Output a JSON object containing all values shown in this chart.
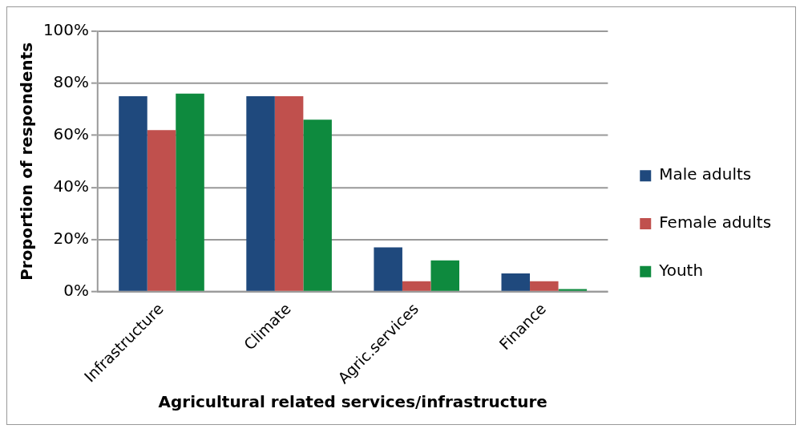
{
  "chart_data": {
    "type": "bar",
    "xlabel": "Agricultural related services/infrastructure",
    "ylabel": "Proportion of respondents",
    "categories": [
      "Infrastructure",
      "Climate",
      "Agric.services",
      "Finance"
    ],
    "series": [
      {
        "name": "Male adults",
        "color": "#1f497d",
        "values": [
          75,
          75,
          17,
          7
        ]
      },
      {
        "name": "Female adults",
        "color": "#c0504d",
        "values": [
          62,
          75,
          4,
          4
        ]
      },
      {
        "name": "Youth",
        "color": "#0e8a3e",
        "values": [
          76,
          66,
          12,
          1
        ]
      }
    ],
    "ylim": [
      0,
      100
    ],
    "yticks": [
      {
        "value": 0,
        "label": "0%"
      },
      {
        "value": 20,
        "label": "20%"
      },
      {
        "value": 40,
        "label": "40%"
      },
      {
        "value": 60,
        "label": "60%"
      },
      {
        "value": 80,
        "label": "80%"
      },
      {
        "value": 100,
        "label": "100%"
      }
    ],
    "grid": "y",
    "legend": "right"
  }
}
